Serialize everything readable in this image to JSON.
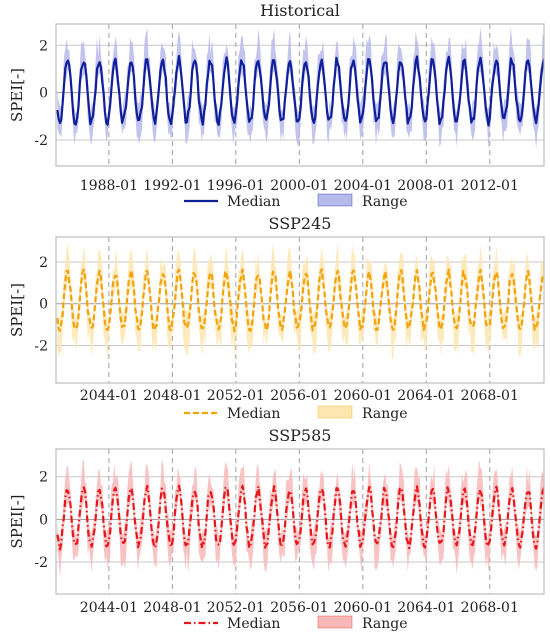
{
  "figure": {
    "panels_note": "Three stacked time-series panels of SPEI"
  },
  "colors": {
    "historical": "#0f1f99",
    "historical_fill": "#b7b9ec",
    "ssp245": "#f4a20a",
    "ssp245_fill": "#fde6b0",
    "ssp585": "#e8161b",
    "ssp585_fill": "#f8b8b8",
    "grid": "#c8c8c8",
    "zero_line": "#9a9a9a",
    "axis": "#bdbdbd",
    "vline": "#a0a0a0"
  },
  "chart_data": [
    {
      "type": "line",
      "title": "Historical",
      "ylabel": "SPEI[-]",
      "xlabel": "",
      "ylim": [
        -3.1,
        2.9
      ],
      "yticks": [
        -2,
        0,
        2
      ],
      "x_range": [
        "1984-09",
        "2015-06"
      ],
      "xtick_labels": [
        "1988-01",
        "1992-01",
        "1996-01",
        "2000-01",
        "2004-01",
        "2008-01",
        "2012-01"
      ],
      "xtick_years": [
        1988,
        1992,
        1996,
        2000,
        2004,
        2008,
        2012
      ],
      "grid": "horizontal and dashed vertical at ticks",
      "legend": {
        "position": "bottom-center",
        "entries": [
          "Median",
          "Range"
        ]
      },
      "series": [
        {
          "name": "Median",
          "style": "solid",
          "approx_peak": 1.4,
          "approx_trough": -1.25,
          "start_year": 1984.75,
          "end_year": 2015.5,
          "period_years": 1
        },
        {
          "name": "Range",
          "style": "band",
          "approx_max": 2.9,
          "approx_min": -2.6
        }
      ]
    },
    {
      "type": "line",
      "title": "SSP245",
      "ylabel": "SPEI[-]",
      "xlabel": "",
      "ylim": [
        -3.8,
        3.2
      ],
      "yticks": [
        -2,
        0,
        2
      ],
      "x_range": [
        "2040-09",
        "2071-06"
      ],
      "xtick_labels": [
        "2044-01",
        "2048-01",
        "2052-01",
        "2056-01",
        "2060-01",
        "2064-01",
        "2068-01"
      ],
      "xtick_years": [
        2044,
        2048,
        2052,
        2056,
        2060,
        2064,
        2068
      ],
      "grid": "horizontal and dashed vertical at ticks",
      "legend": {
        "position": "bottom-center",
        "entries": [
          "Median",
          "Range"
        ]
      },
      "series": [
        {
          "name": "Median",
          "style": "dashed",
          "approx_peak": 1.5,
          "approx_trough": -1.2,
          "start_year": 2040.75,
          "end_year": 2071.5,
          "period_years": 1
        },
        {
          "name": "Range",
          "style": "band",
          "approx_max": 3.0,
          "approx_min": -3.3
        }
      ]
    },
    {
      "type": "line",
      "title": "SSP585",
      "ylabel": "SPEI[-]",
      "xlabel": "",
      "ylim": [
        -3.5,
        3.3
      ],
      "yticks": [
        -2,
        0,
        2
      ],
      "x_range": [
        "2040-09",
        "2071-06"
      ],
      "xtick_labels": [
        "2044-01",
        "2048-01",
        "2052-01",
        "2056-01",
        "2060-01",
        "2064-01",
        "2068-01"
      ],
      "xtick_years": [
        2044,
        2048,
        2052,
        2056,
        2060,
        2064,
        2068
      ],
      "grid": "horizontal and dashed vertical at ticks",
      "legend": {
        "position": "bottom-center",
        "entries": [
          "Median",
          "Range"
        ]
      },
      "series": [
        {
          "name": "Median",
          "style": "dashdot",
          "approx_peak": 1.45,
          "approx_trough": -1.25,
          "start_year": 2040.75,
          "end_year": 2071.5,
          "period_years": 1
        },
        {
          "name": "Range",
          "style": "band",
          "approx_max": 3.0,
          "approx_min": -3.2
        }
      ]
    }
  ]
}
